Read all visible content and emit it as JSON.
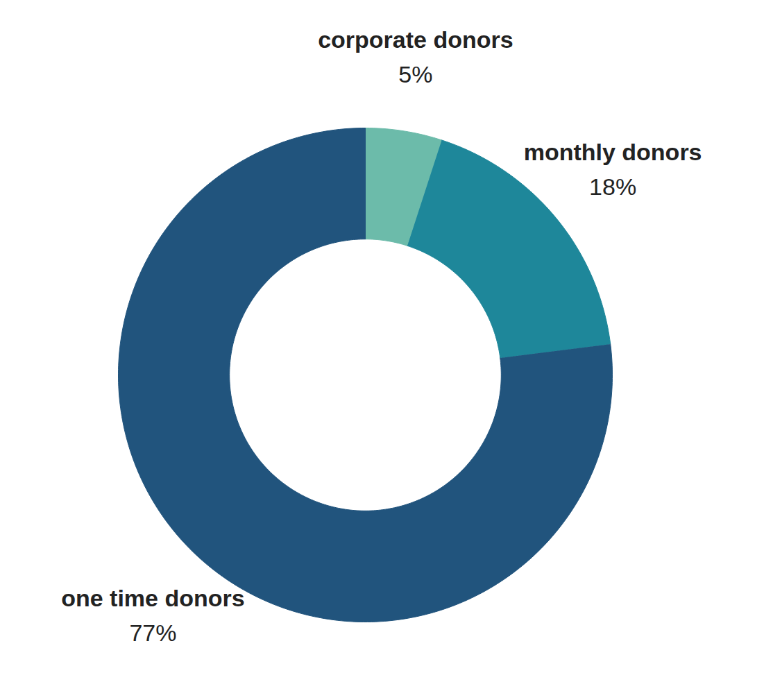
{
  "chart_data": {
    "type": "donut",
    "categories": [
      "corporate donors",
      "monthly donors",
      "one time donors"
    ],
    "values": [
      5,
      18,
      77
    ],
    "value_labels": [
      "5%",
      "18%",
      "77%"
    ],
    "colors": [
      "#6cbbaa",
      "#1e879a",
      "#21547d"
    ],
    "data_labels": true
  }
}
